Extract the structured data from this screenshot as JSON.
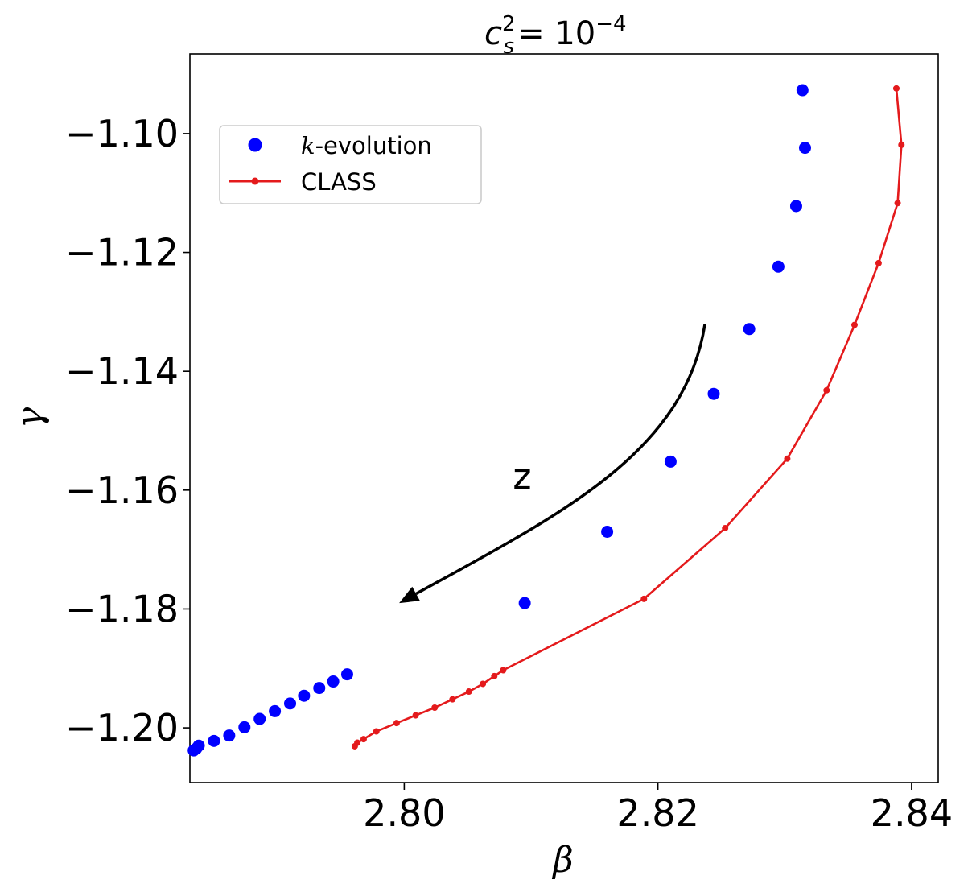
{
  "chart_data": {
    "type": "scatter",
    "title": "c_s^2 = 10^-4",
    "title_parts": {
      "base": "c",
      "sub": "s",
      "sup": "2",
      "eq": "= 10",
      "exp": "−4"
    },
    "xlabel": "β",
    "ylabel": "γ",
    "xlim": [
      2.7831,
      2.8421
    ],
    "ylim": [
      -1.2092,
      -1.0866
    ],
    "x_ticks": [
      2.8,
      2.82,
      2.84
    ],
    "x_tick_labels": [
      "2.80",
      "2.82",
      "2.84"
    ],
    "y_ticks": [
      -1.1,
      -1.12,
      -1.14,
      -1.16,
      -1.18,
      -1.2
    ],
    "y_tick_labels": [
      "−1.10",
      "−1.12",
      "−1.14",
      "−1.16",
      "−1.18",
      "−1.20"
    ],
    "grid": false,
    "legend_position": "upper-left",
    "series": [
      {
        "name": "-evolution",
        "name_prefix": "k",
        "style": "markers",
        "color": "#0000ff",
        "x": [
          2.8314,
          2.8316,
          2.8309,
          2.8295,
          2.8272,
          2.8244,
          2.821,
          2.816,
          2.8095,
          2.7955,
          2.7944,
          2.7933,
          2.7921,
          2.791,
          2.7898,
          2.7886,
          2.7874,
          2.7862,
          2.785,
          2.7838,
          2.7836,
          2.7834
        ],
        "y": [
          -1.0927,
          -1.1024,
          -1.1122,
          -1.1224,
          -1.1329,
          -1.1438,
          -1.1552,
          -1.167,
          -1.179,
          -1.191,
          -1.1922,
          -1.1933,
          -1.1946,
          -1.1959,
          -1.1972,
          -1.1985,
          -1.1999,
          -1.2013,
          -1.2022,
          -1.203,
          -1.2035,
          -1.2038
        ]
      },
      {
        "name": "CLASS",
        "style": "line-markers",
        "color": "#e41a1c",
        "x": [
          2.8388,
          2.8392,
          2.8389,
          2.8374,
          2.8355,
          2.8333,
          2.8302,
          2.8253,
          2.8189,
          2.8078,
          2.8071,
          2.8062,
          2.8051,
          2.8038,
          2.8024,
          2.8009,
          2.7994,
          2.7978,
          2.7968,
          2.7963,
          2.7961
        ],
        "y": [
          -1.0924,
          -1.1019,
          -1.1117,
          -1.1218,
          -1.1322,
          -1.1432,
          -1.1547,
          -1.1664,
          -1.1783,
          -1.1903,
          -1.1913,
          -1.1926,
          -1.1939,
          -1.1952,
          -1.1966,
          -1.1979,
          -1.1992,
          -1.2006,
          -1.2019,
          -1.2025,
          -1.2031
        ]
      }
    ],
    "annotations": [
      {
        "text": "z",
        "x": 2.8093,
        "y": -1.1577
      },
      {
        "type": "arrow",
        "from": [
          2.8237,
          -1.1321
        ],
        "to": [
          2.7996,
          -1.179
        ]
      }
    ]
  }
}
